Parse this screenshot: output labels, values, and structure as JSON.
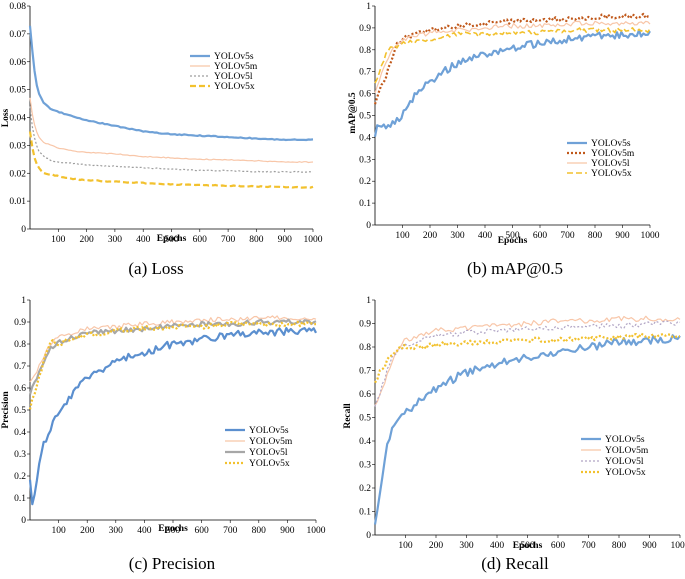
{
  "chart_data": [
    {
      "type": "line",
      "caption": "(a) Loss",
      "xlabel": "Epochs",
      "ylabel": "Loss",
      "xlim": [
        0,
        1000
      ],
      "ylim": [
        0,
        0.08
      ],
      "xticks": [
        100,
        200,
        300,
        400,
        500,
        600,
        700,
        800,
        900,
        1000
      ],
      "xtick_labels": [
        "100",
        "200",
        "300",
        "400",
        "500",
        "600",
        "700",
        "800",
        "900",
        "1000"
      ],
      "yticks": [
        0,
        0.01,
        0.02,
        0.03,
        0.04,
        0.05,
        0.06,
        0.07,
        0.08
      ],
      "ytick_labels": [
        "0",
        "0.01",
        "0.02",
        "0.03",
        "0.04",
        "0.05",
        "0.06",
        "0.07",
        "0.08"
      ],
      "legend_position": "top-right",
      "series": [
        {
          "name": "YOLOv5s",
          "color": "#6fa1d7",
          "dash": "solid",
          "width": 2.2,
          "x": [
            0,
            10,
            20,
            30,
            50,
            75,
            100,
            150,
            200,
            300,
            400,
            500,
            600,
            700,
            800,
            900,
            1000
          ],
          "y": [
            0.073,
            0.062,
            0.053,
            0.049,
            0.045,
            0.043,
            0.042,
            0.0405,
            0.039,
            0.037,
            0.035,
            0.034,
            0.0335,
            0.033,
            0.0325,
            0.032,
            0.032
          ]
        },
        {
          "name": "YOLOv5m",
          "color": "#f8c6a8",
          "dash": "solid",
          "width": 1.2,
          "x": [
            0,
            10,
            20,
            30,
            50,
            75,
            100,
            150,
            200,
            300,
            400,
            500,
            600,
            700,
            800,
            900,
            1000
          ],
          "y": [
            0.047,
            0.04,
            0.036,
            0.033,
            0.031,
            0.03,
            0.029,
            0.028,
            0.0275,
            0.027,
            0.026,
            0.0255,
            0.025,
            0.0248,
            0.0245,
            0.024,
            0.024
          ]
        },
        {
          "name": "YOLOv5l",
          "color": "#9e9e9e",
          "dash": "dot",
          "width": 1.2,
          "x": [
            0,
            10,
            20,
            30,
            50,
            75,
            100,
            150,
            200,
            300,
            400,
            500,
            600,
            700,
            800,
            900,
            1000
          ],
          "y": [
            0.044,
            0.035,
            0.031,
            0.028,
            0.026,
            0.0245,
            0.024,
            0.0235,
            0.023,
            0.0225,
            0.022,
            0.0215,
            0.021,
            0.021,
            0.0205,
            0.0205,
            0.0205
          ]
        },
        {
          "name": "YOLOv5x",
          "color": "#f2c12e",
          "dash": "dash",
          "width": 2.2,
          "x": [
            0,
            10,
            20,
            30,
            50,
            75,
            100,
            150,
            200,
            300,
            400,
            500,
            600,
            700,
            800,
            900,
            1000
          ],
          "y": [
            0.035,
            0.028,
            0.024,
            0.022,
            0.02,
            0.0195,
            0.019,
            0.018,
            0.0175,
            0.017,
            0.0165,
            0.016,
            0.0158,
            0.0155,
            0.0153,
            0.015,
            0.015
          ]
        }
      ]
    },
    {
      "type": "line",
      "caption": "(b) mAP@0.5",
      "xlabel": "Epochs",
      "ylabel": "mAP@0.5",
      "xlim": [
        0,
        1000
      ],
      "ylim": [
        0,
        1
      ],
      "xticks": [
        100,
        200,
        300,
        400,
        500,
        600,
        700,
        800,
        900,
        1000
      ],
      "xtick_labels": [
        "100",
        "200",
        "300",
        "400",
        "500",
        "600",
        "700",
        "800",
        "900",
        "1000"
      ],
      "yticks": [
        0,
        0.1,
        0.2,
        0.3,
        0.4,
        0.5,
        0.6,
        0.7,
        0.8,
        0.9,
        1
      ],
      "ytick_labels": [
        "0",
        "0.1",
        "0.2",
        "0.3",
        "0.4",
        "0.5",
        "0.6",
        "0.7",
        "0.8",
        "0.9",
        "1"
      ],
      "legend_position": "bottom-right",
      "series": [
        {
          "name": "YOLOv5s",
          "color": "#6fa1d7",
          "dash": "solid",
          "width": 2.2,
          "x": [
            0,
            20,
            40,
            60,
            80,
            100,
            150,
            200,
            250,
            300,
            400,
            500,
            600,
            700,
            800,
            900,
            1000
          ],
          "y": [
            0.42,
            0.47,
            0.43,
            0.46,
            0.48,
            0.5,
            0.6,
            0.65,
            0.7,
            0.74,
            0.78,
            0.81,
            0.83,
            0.85,
            0.86,
            0.87,
            0.88
          ]
        },
        {
          "name": "YOLOv5m",
          "color": "#c0581a",
          "dash": "dot",
          "width": 2.2,
          "x": [
            0,
            20,
            40,
            60,
            80,
            100,
            150,
            200,
            300,
            400,
            500,
            600,
            700,
            800,
            900,
            1000
          ],
          "y": [
            0.55,
            0.62,
            0.68,
            0.76,
            0.83,
            0.85,
            0.87,
            0.89,
            0.91,
            0.92,
            0.93,
            0.94,
            0.94,
            0.95,
            0.95,
            0.955
          ]
        },
        {
          "name": "YOLOv5l",
          "color": "#f8c6a8",
          "dash": "solid",
          "width": 1.2,
          "x": [
            0,
            20,
            40,
            60,
            80,
            100,
            150,
            200,
            300,
            400,
            500,
            600,
            700,
            800,
            900,
            1000
          ],
          "y": [
            0.6,
            0.68,
            0.74,
            0.79,
            0.83,
            0.85,
            0.86,
            0.88,
            0.89,
            0.9,
            0.91,
            0.91,
            0.92,
            0.92,
            0.92,
            0.92
          ]
        },
        {
          "name": "YOLOv5x",
          "color": "#f2c12e",
          "dash": "dash",
          "width": 1.6,
          "x": [
            0,
            20,
            40,
            60,
            80,
            100,
            150,
            200,
            300,
            400,
            500,
            600,
            700,
            800,
            900,
            1000
          ],
          "y": [
            0.65,
            0.72,
            0.78,
            0.81,
            0.82,
            0.83,
            0.84,
            0.85,
            0.87,
            0.87,
            0.88,
            0.88,
            0.89,
            0.89,
            0.89,
            0.89
          ]
        }
      ]
    },
    {
      "type": "line",
      "caption": "(c) Precision",
      "xlabel": "Epochs",
      "ylabel": "Precision",
      "xlim": [
        0,
        1000
      ],
      "ylim": [
        0,
        1
      ],
      "xticks": [
        100,
        200,
        300,
        400,
        500,
        600,
        700,
        800,
        900,
        1000
      ],
      "xtick_labels": [
        "100",
        "200",
        "300",
        "400",
        "500",
        "600",
        "700",
        "800",
        "900",
        "1000"
      ],
      "yticks": [
        0,
        0.1,
        0.2,
        0.3,
        0.4,
        0.5,
        0.6,
        0.7,
        0.8,
        0.9,
        1
      ],
      "ytick_labels": [
        "0",
        "0.1",
        "0.2",
        "0.3",
        "0.4",
        "0.5",
        "0.6",
        "0.7",
        "0.8",
        "0.9",
        "1"
      ],
      "legend_position": "bottom-right",
      "series": [
        {
          "name": "YOLOv5s",
          "color": "#5b8fcf",
          "dash": "solid",
          "width": 2.2,
          "x": [
            0,
            10,
            20,
            30,
            40,
            60,
            80,
            100,
            150,
            200,
            250,
            300,
            400,
            500,
            600,
            700,
            800,
            900,
            1000
          ],
          "y": [
            0.17,
            0.03,
            0.15,
            0.25,
            0.32,
            0.38,
            0.44,
            0.48,
            0.58,
            0.64,
            0.68,
            0.72,
            0.76,
            0.8,
            0.82,
            0.84,
            0.85,
            0.86,
            0.86
          ]
        },
        {
          "name": "YOLOv5m",
          "color": "#f8c6a8",
          "dash": "solid",
          "width": 1.2,
          "x": [
            0,
            20,
            40,
            60,
            80,
            100,
            150,
            200,
            300,
            400,
            500,
            600,
            700,
            800,
            900,
            1000
          ],
          "y": [
            0.62,
            0.66,
            0.72,
            0.78,
            0.81,
            0.84,
            0.85,
            0.87,
            0.88,
            0.89,
            0.9,
            0.91,
            0.91,
            0.92,
            0.92,
            0.92
          ]
        },
        {
          "name": "YOLOv5l",
          "color": "#a7a7a7",
          "dash": "solid",
          "width": 2.2,
          "x": [
            0,
            20,
            40,
            60,
            80,
            100,
            150,
            200,
            300,
            400,
            500,
            600,
            700,
            800,
            900,
            1000
          ],
          "y": [
            0.58,
            0.63,
            0.7,
            0.76,
            0.79,
            0.81,
            0.83,
            0.85,
            0.86,
            0.87,
            0.88,
            0.89,
            0.89,
            0.9,
            0.9,
            0.9
          ]
        },
        {
          "name": "YOLOv5x",
          "color": "#f2c12e",
          "dash": "dot",
          "width": 2.2,
          "x": [
            0,
            20,
            40,
            60,
            80,
            100,
            150,
            200,
            300,
            400,
            500,
            600,
            700,
            800,
            900,
            1000
          ],
          "y": [
            0.5,
            0.6,
            0.68,
            0.78,
            0.82,
            0.8,
            0.83,
            0.84,
            0.86,
            0.87,
            0.88,
            0.88,
            0.89,
            0.89,
            0.89,
            0.89
          ]
        }
      ]
    },
    {
      "type": "line",
      "caption": "(d) Recall",
      "xlabel": "Epochs",
      "ylabel": "Recall",
      "xlim": [
        0,
        1000
      ],
      "ylim": [
        0,
        1
      ],
      "xticks": [
        100,
        200,
        300,
        400,
        500,
        600,
        700,
        800,
        900,
        1000
      ],
      "xtick_labels": [
        "100",
        "200",
        "300",
        "400",
        "500",
        "600",
        "700",
        "800",
        "900",
        "1000"
      ],
      "yticks": [
        0,
        0.1,
        0.2,
        0.3,
        0.4,
        0.5,
        0.6,
        0.7,
        0.8,
        0.9,
        1
      ],
      "ytick_labels": [
        "0",
        "0.1",
        "0.2",
        "0.3",
        "0.4",
        "0.5",
        "0.6",
        "0.7",
        "0.8",
        "0.9",
        "1"
      ],
      "legend_position": "bottom-right",
      "series": [
        {
          "name": "YOLOv5s",
          "color": "#6fa1d7",
          "dash": "solid",
          "width": 2.2,
          "x": [
            0,
            10,
            20,
            30,
            40,
            60,
            80,
            100,
            150,
            200,
            250,
            300,
            400,
            500,
            600,
            700,
            800,
            900,
            1000
          ],
          "y": [
            0.05,
            0.1,
            0.22,
            0.32,
            0.4,
            0.46,
            0.5,
            0.52,
            0.58,
            0.62,
            0.66,
            0.69,
            0.73,
            0.76,
            0.78,
            0.8,
            0.82,
            0.83,
            0.84
          ]
        },
        {
          "name": "YOLOv5m",
          "color": "#f8c6a8",
          "dash": "solid",
          "width": 1.2,
          "x": [
            0,
            20,
            40,
            60,
            80,
            100,
            150,
            200,
            300,
            400,
            500,
            600,
            700,
            800,
            900,
            1000
          ],
          "y": [
            0.55,
            0.6,
            0.68,
            0.75,
            0.8,
            0.83,
            0.85,
            0.87,
            0.88,
            0.89,
            0.9,
            0.91,
            0.91,
            0.92,
            0.92,
            0.92
          ]
        },
        {
          "name": "YOLOv5l",
          "color": "#b0a4c4",
          "dash": "dot",
          "width": 1.2,
          "x": [
            0,
            20,
            40,
            60,
            80,
            100,
            150,
            200,
            300,
            400,
            500,
            600,
            700,
            800,
            900,
            1000
          ],
          "y": [
            0.55,
            0.62,
            0.7,
            0.76,
            0.79,
            0.81,
            0.83,
            0.85,
            0.86,
            0.87,
            0.88,
            0.88,
            0.89,
            0.89,
            0.9,
            0.9
          ]
        },
        {
          "name": "YOLOv5x",
          "color": "#f2c12e",
          "dash": "dot",
          "width": 2.2,
          "x": [
            0,
            20,
            40,
            60,
            80,
            100,
            150,
            200,
            300,
            400,
            500,
            600,
            700,
            800,
            900,
            1000
          ],
          "y": [
            0.65,
            0.7,
            0.74,
            0.77,
            0.79,
            0.8,
            0.8,
            0.81,
            0.82,
            0.82,
            0.83,
            0.83,
            0.84,
            0.84,
            0.85,
            0.85
          ]
        }
      ]
    }
  ]
}
